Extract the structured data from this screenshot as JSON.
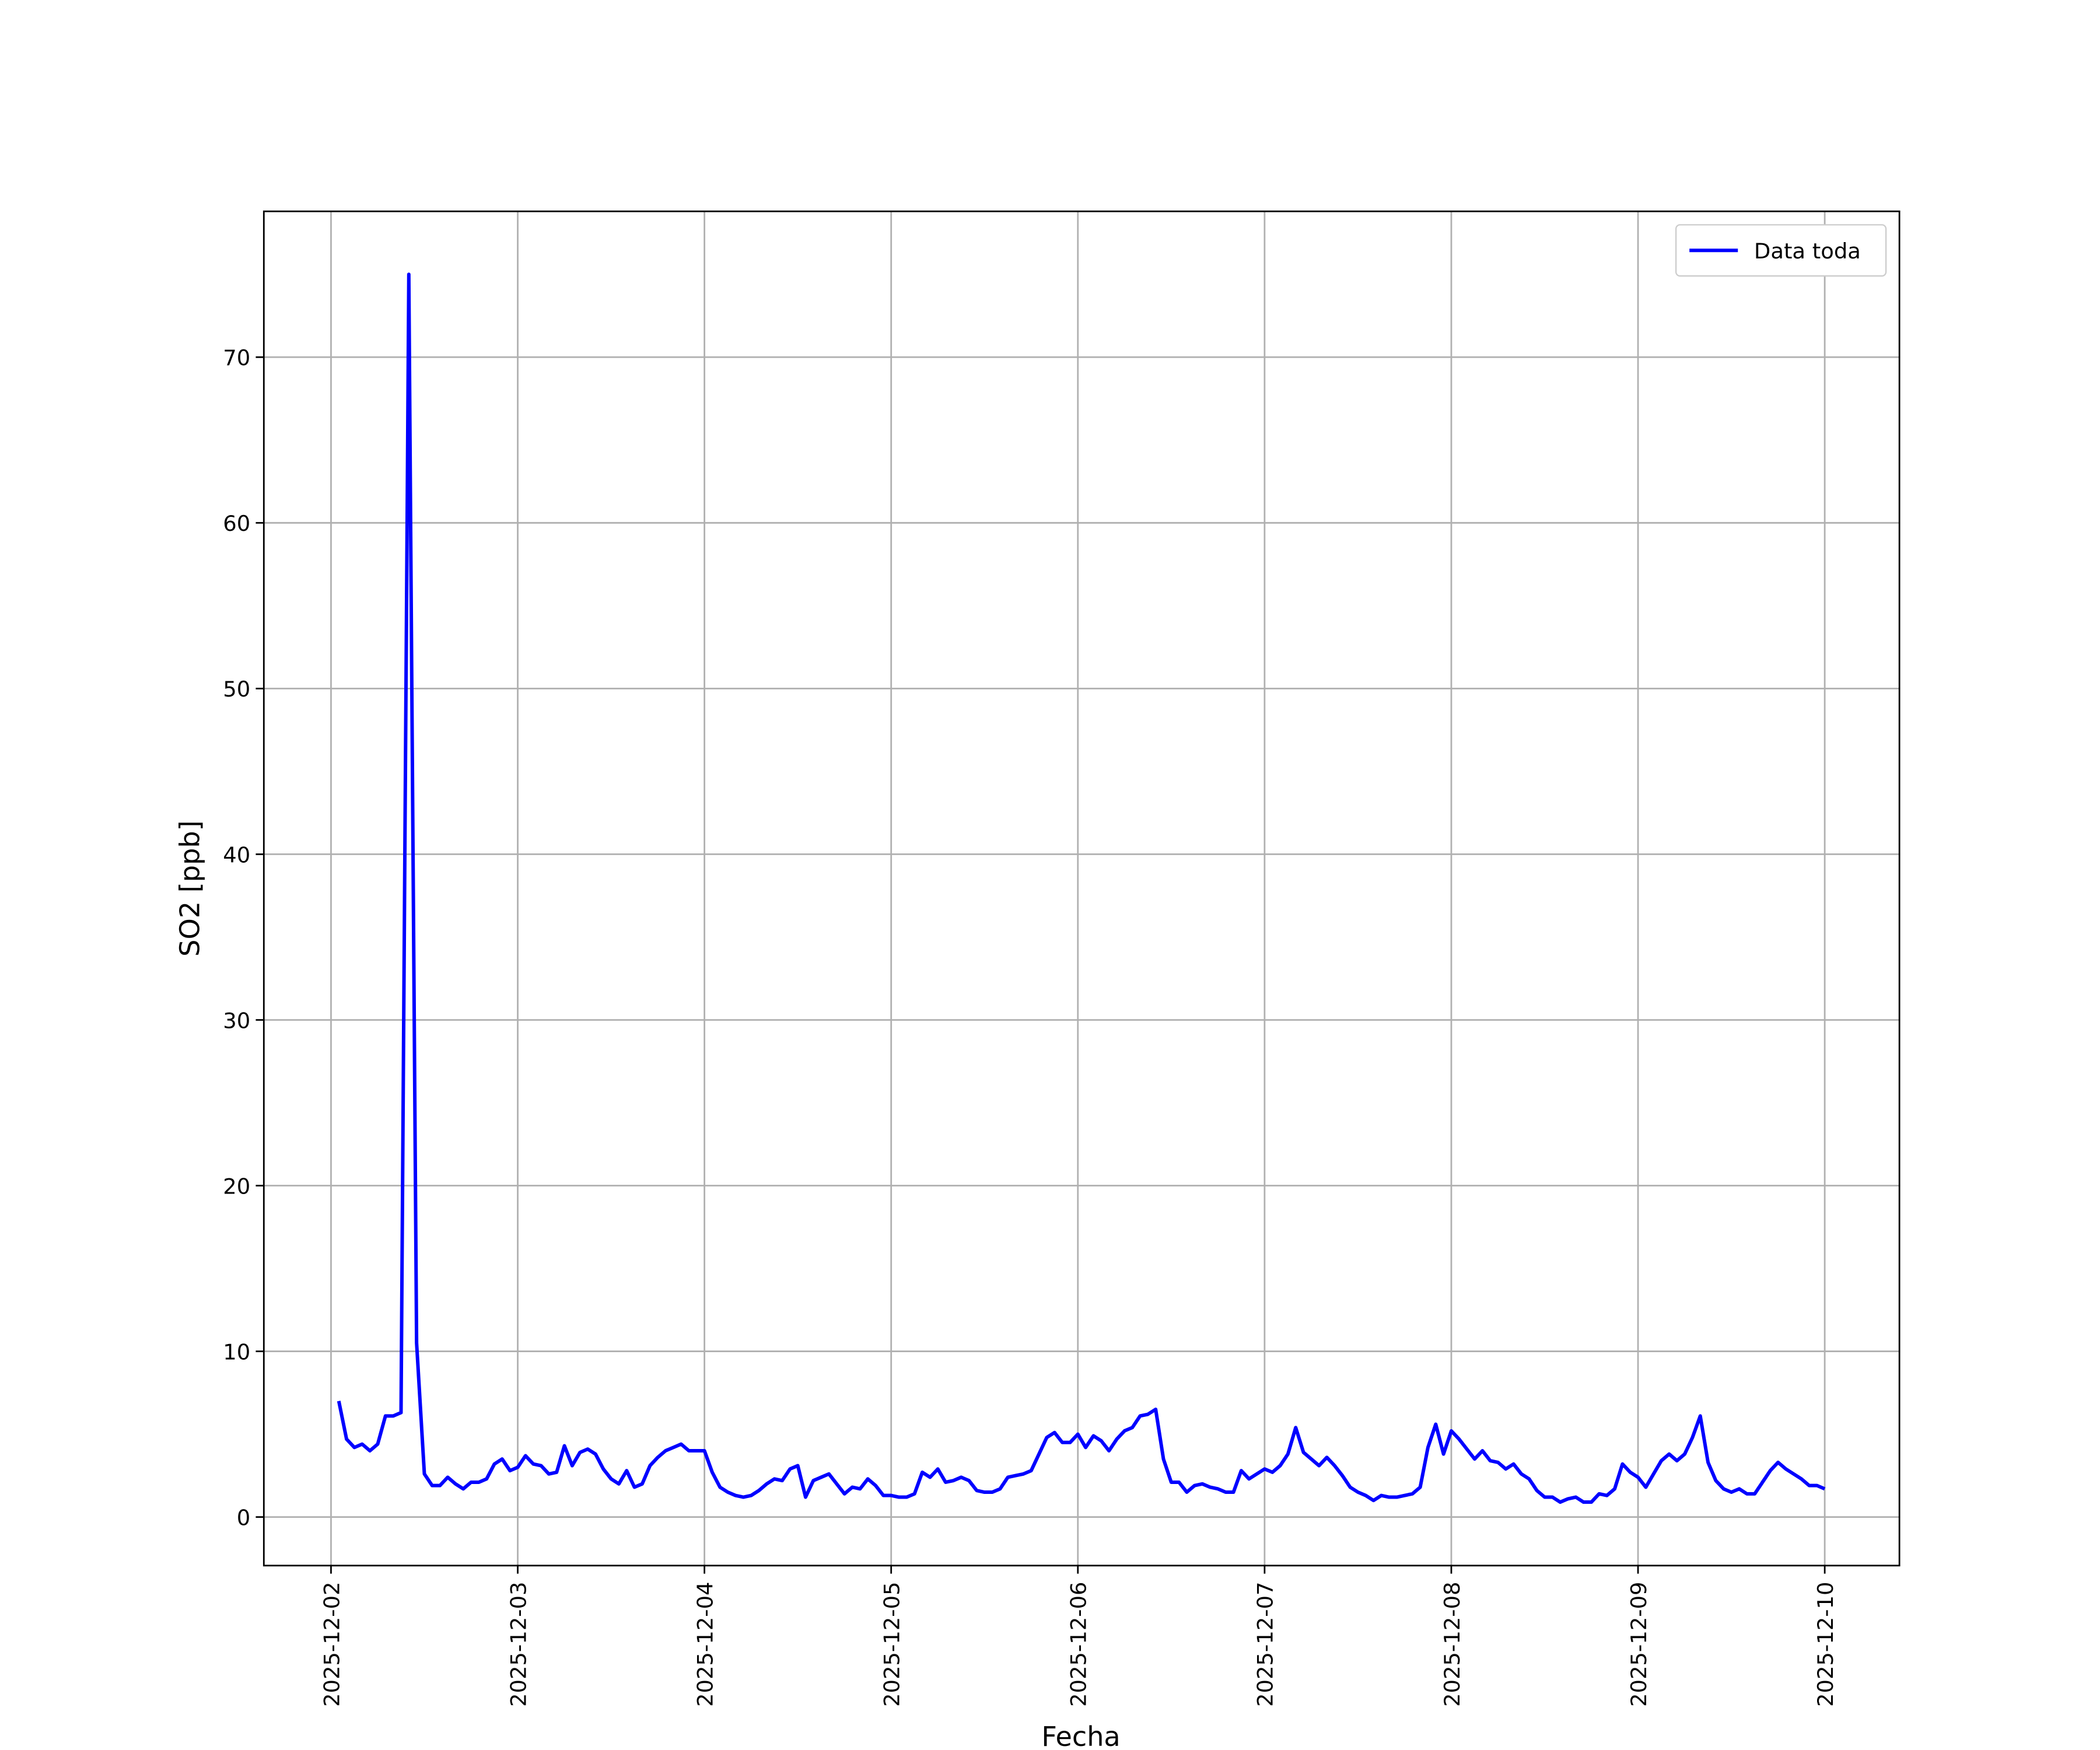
{
  "chart_data": {
    "type": "line",
    "xlabel": "Fecha",
    "ylabel": "SO2 [ppb]",
    "x": [
      "2025-12-02 01:00",
      "2025-12-02 02:00",
      "2025-12-02 03:00",
      "2025-12-02 04:00",
      "2025-12-02 05:00",
      "2025-12-02 06:00",
      "2025-12-02 07:00",
      "2025-12-02 08:00",
      "2025-12-02 09:00",
      "2025-12-02 10:00",
      "2025-12-02 11:00",
      "2025-12-02 12:00",
      "2025-12-02 13:00",
      "2025-12-02 14:00",
      "2025-12-02 15:00",
      "2025-12-02 16:00",
      "2025-12-02 17:00",
      "2025-12-02 18:00",
      "2025-12-02 19:00",
      "2025-12-02 20:00",
      "2025-12-02 21:00",
      "2025-12-02 22:00",
      "2025-12-02 23:00",
      "2025-12-03 00:00",
      "2025-12-03 01:00",
      "2025-12-03 02:00",
      "2025-12-03 03:00",
      "2025-12-03 04:00",
      "2025-12-03 05:00",
      "2025-12-03 06:00",
      "2025-12-03 07:00",
      "2025-12-03 08:00",
      "2025-12-03 09:00",
      "2025-12-03 10:00",
      "2025-12-03 11:00",
      "2025-12-03 12:00",
      "2025-12-03 13:00",
      "2025-12-03 14:00",
      "2025-12-03 15:00",
      "2025-12-03 16:00",
      "2025-12-03 17:00",
      "2025-12-03 18:00",
      "2025-12-03 19:00",
      "2025-12-03 20:00",
      "2025-12-03 21:00",
      "2025-12-03 22:00",
      "2025-12-03 23:00",
      "2025-12-04 00:00",
      "2025-12-04 01:00",
      "2025-12-04 02:00",
      "2025-12-04 03:00",
      "2025-12-04 04:00",
      "2025-12-04 05:00",
      "2025-12-04 06:00",
      "2025-12-04 07:00",
      "2025-12-04 08:00",
      "2025-12-04 09:00",
      "2025-12-04 10:00",
      "2025-12-04 11:00",
      "2025-12-04 12:00",
      "2025-12-04 13:00",
      "2025-12-04 14:00",
      "2025-12-04 15:00",
      "2025-12-04 16:00",
      "2025-12-04 17:00",
      "2025-12-04 18:00",
      "2025-12-04 19:00",
      "2025-12-04 20:00",
      "2025-12-04 21:00",
      "2025-12-04 22:00",
      "2025-12-04 23:00",
      "2025-12-05 00:00",
      "2025-12-05 01:00",
      "2025-12-05 02:00",
      "2025-12-05 03:00",
      "2025-12-05 04:00",
      "2025-12-05 05:00",
      "2025-12-05 06:00",
      "2025-12-05 07:00",
      "2025-12-05 08:00",
      "2025-12-05 09:00",
      "2025-12-05 10:00",
      "2025-12-05 11:00",
      "2025-12-05 12:00",
      "2025-12-05 13:00",
      "2025-12-05 14:00",
      "2025-12-05 15:00",
      "2025-12-05 16:00",
      "2025-12-05 17:00",
      "2025-12-05 18:00",
      "2025-12-05 19:00",
      "2025-12-05 20:00",
      "2025-12-05 21:00",
      "2025-12-05 22:00",
      "2025-12-05 23:00",
      "2025-12-06 00:00",
      "2025-12-06 01:00",
      "2025-12-06 02:00",
      "2025-12-06 03:00",
      "2025-12-06 04:00",
      "2025-12-06 05:00",
      "2025-12-06 06:00",
      "2025-12-06 07:00",
      "2025-12-06 08:00",
      "2025-12-06 09:00",
      "2025-12-06 10:00",
      "2025-12-06 11:00",
      "2025-12-06 12:00",
      "2025-12-06 13:00",
      "2025-12-06 14:00",
      "2025-12-06 15:00",
      "2025-12-06 16:00",
      "2025-12-06 17:00",
      "2025-12-06 18:00",
      "2025-12-06 19:00",
      "2025-12-06 20:00",
      "2025-12-06 21:00",
      "2025-12-06 22:00",
      "2025-12-06 23:00",
      "2025-12-07 00:00",
      "2025-12-07 01:00",
      "2025-12-07 02:00",
      "2025-12-07 03:00",
      "2025-12-07 04:00",
      "2025-12-07 05:00",
      "2025-12-07 06:00",
      "2025-12-07 07:00",
      "2025-12-07 08:00",
      "2025-12-07 09:00",
      "2025-12-07 10:00",
      "2025-12-07 11:00",
      "2025-12-07 12:00",
      "2025-12-07 13:00",
      "2025-12-07 14:00",
      "2025-12-07 15:00",
      "2025-12-07 16:00",
      "2025-12-07 17:00",
      "2025-12-07 18:00",
      "2025-12-07 19:00",
      "2025-12-07 20:00",
      "2025-12-07 21:00",
      "2025-12-07 22:00",
      "2025-12-07 23:00",
      "2025-12-08 00:00",
      "2025-12-08 01:00",
      "2025-12-08 02:00",
      "2025-12-08 03:00",
      "2025-12-08 04:00",
      "2025-12-08 05:00",
      "2025-12-08 06:00",
      "2025-12-08 07:00",
      "2025-12-08 08:00",
      "2025-12-08 09:00",
      "2025-12-08 10:00",
      "2025-12-08 11:00",
      "2025-12-08 12:00",
      "2025-12-08 13:00",
      "2025-12-08 14:00",
      "2025-12-08 15:00",
      "2025-12-08 16:00",
      "2025-12-08 17:00",
      "2025-12-08 18:00",
      "2025-12-08 19:00",
      "2025-12-08 20:00",
      "2025-12-08 21:00",
      "2025-12-08 22:00",
      "2025-12-08 23:00",
      "2025-12-09 00:00",
      "2025-12-09 01:00",
      "2025-12-09 02:00",
      "2025-12-09 03:00",
      "2025-12-09 04:00",
      "2025-12-09 05:00",
      "2025-12-09 06:00",
      "2025-12-09 07:00",
      "2025-12-09 08:00",
      "2025-12-09 09:00",
      "2025-12-09 10:00",
      "2025-12-09 11:00",
      "2025-12-09 12:00",
      "2025-12-09 13:00",
      "2025-12-09 14:00",
      "2025-12-09 15:00",
      "2025-12-09 16:00",
      "2025-12-09 17:00",
      "2025-12-09 18:00",
      "2025-12-09 19:00",
      "2025-12-09 20:00",
      "2025-12-09 21:00",
      "2025-12-09 22:00",
      "2025-12-09 23:00",
      "2025-12-10 00:00"
    ],
    "series": [
      {
        "name": "Data toda",
        "color": "#0000ff",
        "values": [
          7.0,
          4.7,
          4.2,
          4.4,
          4.0,
          4.4,
          6.1,
          6.1,
          6.3,
          75.0,
          10.5,
          2.6,
          1.9,
          1.9,
          2.4,
          2.0,
          1.7,
          2.1,
          2.1,
          2.3,
          3.2,
          3.5,
          2.8,
          3.0,
          3.7,
          3.2,
          3.1,
          2.6,
          2.7,
          4.3,
          3.1,
          3.9,
          4.1,
          3.8,
          2.9,
          2.3,
          2.0,
          2.8,
          1.8,
          2.0,
          3.1,
          3.6,
          4.0,
          4.2,
          4.4,
          4.0,
          4.0,
          4.0,
          2.7,
          1.8,
          1.5,
          1.3,
          1.2,
          1.3,
          1.6,
          2.0,
          2.3,
          2.2,
          2.9,
          3.1,
          1.2,
          2.2,
          2.4,
          2.6,
          2.0,
          1.4,
          1.8,
          1.7,
          2.3,
          1.9,
          1.3,
          1.3,
          1.2,
          1.2,
          1.4,
          2.7,
          2.4,
          2.9,
          2.1,
          2.2,
          2.4,
          2.2,
          1.6,
          1.5,
          1.5,
          1.7,
          2.4,
          2.5,
          2.6,
          2.8,
          3.8,
          4.8,
          5.1,
          4.5,
          4.5,
          5.0,
          4.2,
          4.9,
          4.6,
          4.0,
          4.7,
          5.2,
          5.4,
          6.1,
          6.2,
          6.5,
          3.5,
          2.1,
          2.1,
          1.5,
          1.9,
          2.0,
          1.8,
          1.7,
          1.5,
          1.5,
          2.8,
          2.3,
          2.6,
          2.9,
          2.7,
          3.1,
          3.8,
          5.4,
          3.9,
          3.5,
          3.1,
          3.6,
          3.1,
          2.5,
          1.8,
          1.5,
          1.3,
          1.0,
          1.3,
          1.2,
          1.2,
          1.3,
          1.4,
          1.8,
          4.2,
          5.6,
          3.8,
          5.2,
          4.7,
          4.1,
          3.5,
          4.0,
          3.4,
          3.3,
          2.9,
          3.2,
          2.6,
          2.3,
          1.6,
          1.2,
          1.2,
          0.9,
          1.1,
          1.2,
          0.9,
          0.9,
          1.4,
          1.3,
          1.7,
          3.2,
          2.7,
          2.4,
          1.8,
          2.6,
          3.4,
          3.8,
          3.4,
          3.8,
          4.8,
          6.1,
          3.3,
          2.2,
          1.7,
          1.5,
          1.7,
          1.4,
          1.4,
          2.1,
          2.8,
          3.3,
          2.9,
          2.6,
          2.3,
          1.9,
          1.9,
          1.7
        ]
      }
    ],
    "xlim": [
      "2025-12-01 15:22",
      "2025-12-10 09:36"
    ],
    "xticks": [
      "2025-12-02",
      "2025-12-03",
      "2025-12-04",
      "2025-12-05",
      "2025-12-06",
      "2025-12-07",
      "2025-12-08",
      "2025-12-09",
      "2025-12-10"
    ],
    "ylim": [
      -2.93,
      78.8
    ],
    "yticks": [
      0,
      10,
      20,
      30,
      40,
      50,
      60,
      70
    ],
    "grid": true,
    "legend": "upper right"
  }
}
